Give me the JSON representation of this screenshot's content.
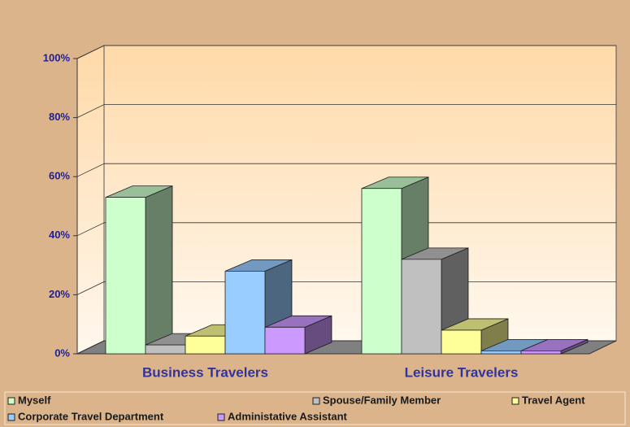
{
  "chart_data": {
    "type": "bar3d",
    "categories": [
      "Business Travelers",
      "Leisure Travelers"
    ],
    "series": [
      {
        "name": "Myself",
        "color": "#ccffcc",
        "values": [
          53,
          56
        ]
      },
      {
        "name": "Spouse/Family Member",
        "color": "#c0c0c0",
        "values": [
          3,
          32
        ]
      },
      {
        "name": "Travel Agent",
        "color": "#ffff99",
        "values": [
          6,
          8
        ]
      },
      {
        "name": "Corporate Travel Department",
        "color": "#99ccff",
        "values": [
          28,
          1
        ]
      },
      {
        "name": "Administative Assistant",
        "color": "#cc99ff",
        "values": [
          9,
          1
        ]
      }
    ],
    "ylim": [
      0,
      100
    ],
    "yticks": [
      {
        "value": 0,
        "label": "0%"
      },
      {
        "value": 20,
        "label": "20%"
      },
      {
        "value": 40,
        "label": "40%"
      },
      {
        "value": 60,
        "label": "60%"
      },
      {
        "value": 80,
        "label": "80%"
      },
      {
        "value": 100,
        "label": "100%"
      }
    ],
    "grid": true,
    "legend": "bottom"
  }
}
